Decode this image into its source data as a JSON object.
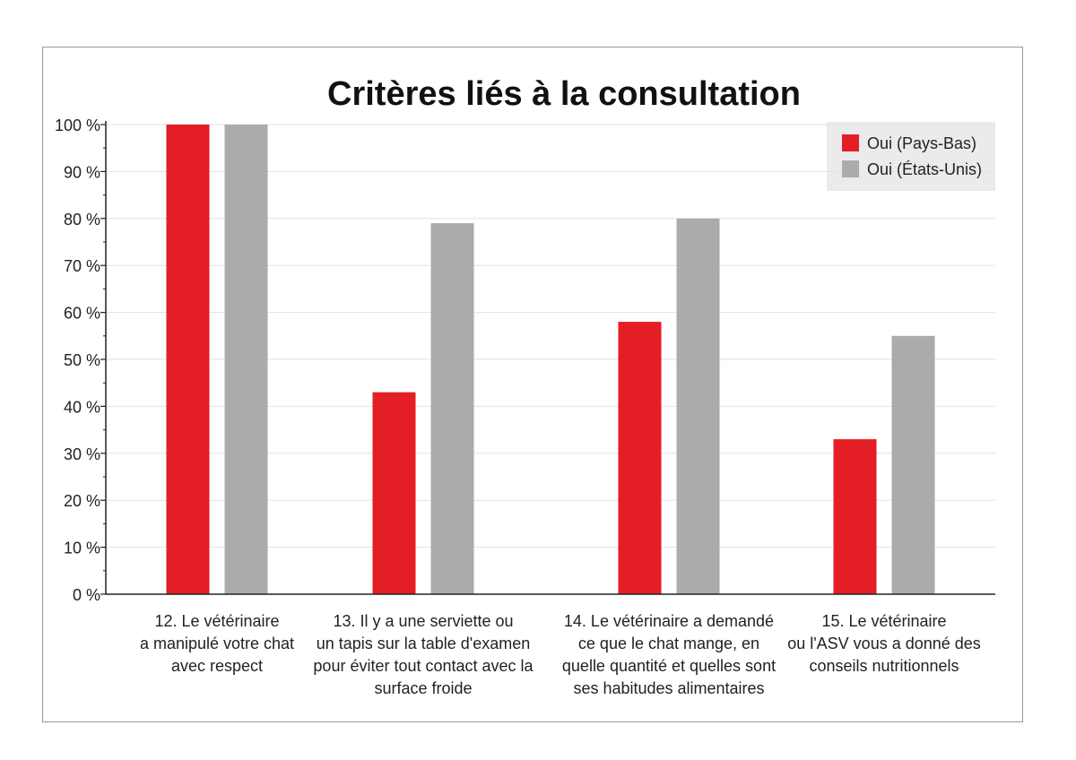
{
  "chart_data": {
    "type": "bar",
    "title": "Critères liés à la consultation",
    "xlabel": "",
    "ylabel": "",
    "ylim": [
      0,
      100
    ],
    "y_ticks": [
      "0 %",
      "10 %",
      "20 %",
      "30 %",
      "40 %",
      "50 %",
      "60 %",
      "70 %",
      "80 %",
      "90 %",
      "100 %"
    ],
    "grid": true,
    "legend_position": "top-right",
    "categories": [
      [
        "12. Le vétérinaire",
        "a manipulé votre chat",
        "avec respect"
      ],
      [
        "13. Il y a une serviette ou",
        "un tapis sur la table d'examen",
        "pour éviter tout contact avec la",
        "surface froide"
      ],
      [
        "14. Le vétérinaire a demandé",
        "ce que le chat mange, en",
        "quelle quantité et quelles sont",
        "ses habitudes alimentaires"
      ],
      [
        "15. Le vétérinaire",
        "ou l'ASV vous a donné des",
        "conseils nutritionnels"
      ]
    ],
    "series": [
      {
        "name": "Oui (Pays-Bas)",
        "color": "#e31e24",
        "values": [
          100,
          43,
          58,
          33
        ]
      },
      {
        "name": "Oui (États-Unis)",
        "color": "#aaabad",
        "values": [
          100,
          79,
          80,
          55
        ]
      }
    ]
  }
}
